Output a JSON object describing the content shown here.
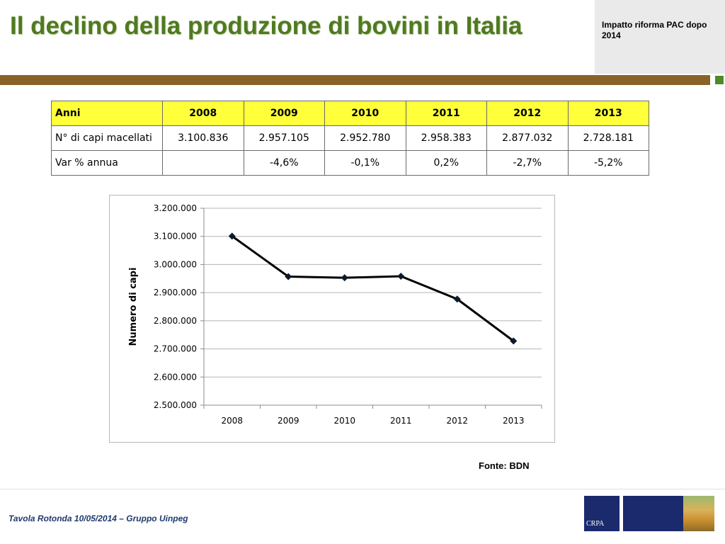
{
  "slide": {
    "title": "Il declino della produzione di bovini in Italia",
    "corner_label": "Impatto riforma PAC dopo 2014",
    "source": "Fonte: BDN",
    "footer": "Tavola Rotonda  10/05/2014 – Gruppo Uinpeg",
    "logo_text": "CRPA"
  },
  "colors": {
    "title": "#4f7a1f",
    "rule": "#8a6127",
    "table_header": "#ffff3a",
    "footer_text": "#1f3a6e",
    "logo": "#1a2a6c"
  },
  "table": {
    "header": [
      "Anni",
      "2008",
      "2009",
      "2010",
      "2011",
      "2012",
      "2013"
    ],
    "rows": [
      [
        "N° di capi macellati",
        "3.100.836",
        "2.957.105",
        "2.952.780",
        "2.958.383",
        "2.877.032",
        "2.728.181"
      ],
      [
        "Var % annua",
        "",
        "-4,6%",
        "-0,1%",
        "0,2%",
        "-2,7%",
        "-5,2%"
      ]
    ]
  },
  "chart_data": {
    "type": "line",
    "categories": [
      "2008",
      "2009",
      "2010",
      "2011",
      "2012",
      "2013"
    ],
    "values": [
      3100836,
      2957105,
      2952780,
      2958383,
      2877032,
      2728181
    ],
    "ylabel": "Numero di capi",
    "xlabel": "",
    "ylim": [
      2500000,
      3200000
    ],
    "yticks": [
      "2.500.000",
      "2.600.000",
      "2.700.000",
      "2.800.000",
      "2.900.000",
      "3.000.000",
      "3.100.000",
      "3.200.000"
    ],
    "grid": "horizontal",
    "line_color": "#000000",
    "marker": "diamond"
  }
}
